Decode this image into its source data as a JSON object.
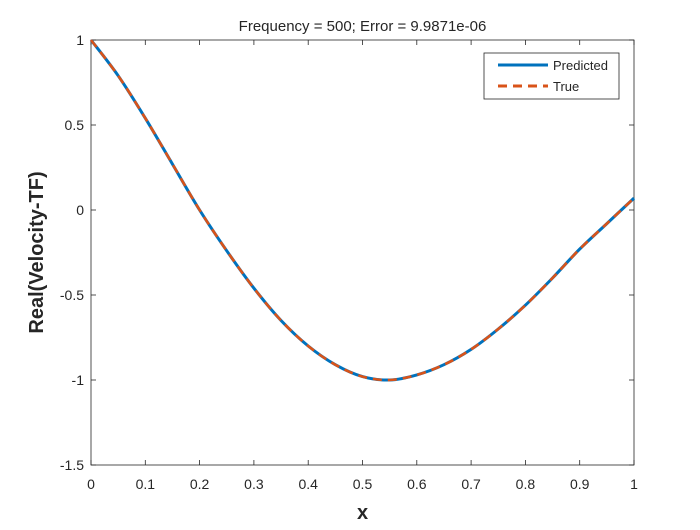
{
  "chart_data": {
    "type": "line",
    "title": "Frequency = 500; Error = 9.9871e-06",
    "xlabel": "x",
    "ylabel": "Real(Velocity-TF)",
    "xlim": [
      0,
      1
    ],
    "ylim": [
      -1.5,
      1
    ],
    "xticks": [
      0,
      0.1,
      0.2,
      0.3,
      0.4,
      0.5,
      0.6,
      0.7,
      0.8,
      0.9,
      1
    ],
    "xtick_labels": [
      "0",
      "0.1",
      "0.2",
      "0.3",
      "0.4",
      "0.5",
      "0.6",
      "0.7",
      "0.8",
      "0.9",
      "1"
    ],
    "yticks": [
      1,
      0.5,
      0,
      -0.5,
      -1,
      -1.5
    ],
    "ytick_labels": [
      "1",
      "0.5",
      "0",
      "-0.5",
      "-1",
      "-1.5"
    ],
    "grid": false,
    "legend_position": "top-right",
    "series": [
      {
        "name": "Predicted",
        "color": "#0072BD",
        "style": "solid",
        "x": [
          0,
          0.05,
          0.1,
          0.15,
          0.2,
          0.25,
          0.3,
          0.35,
          0.4,
          0.45,
          0.5,
          0.55,
          0.6,
          0.65,
          0.7,
          0.75,
          0.8,
          0.85,
          0.9,
          0.95,
          1
        ],
        "y": [
          1,
          0.79,
          0.54,
          0.27,
          0.0,
          -0.24,
          -0.46,
          -0.65,
          -0.8,
          -0.91,
          -0.98,
          -1.0,
          -0.97,
          -0.91,
          -0.82,
          -0.7,
          -0.56,
          -0.4,
          -0.23,
          -0.08,
          0.07
        ]
      },
      {
        "name": "True",
        "color": "#D95319",
        "style": "dashed",
        "x": [
          0,
          0.05,
          0.1,
          0.15,
          0.2,
          0.25,
          0.3,
          0.35,
          0.4,
          0.45,
          0.5,
          0.55,
          0.6,
          0.65,
          0.7,
          0.75,
          0.8,
          0.85,
          0.9,
          0.95,
          1
        ],
        "y": [
          1,
          0.79,
          0.54,
          0.27,
          0.0,
          -0.24,
          -0.46,
          -0.65,
          -0.8,
          -0.91,
          -0.98,
          -1.0,
          -0.97,
          -0.91,
          -0.82,
          -0.7,
          -0.56,
          -0.4,
          -0.23,
          -0.08,
          0.07
        ]
      }
    ]
  }
}
